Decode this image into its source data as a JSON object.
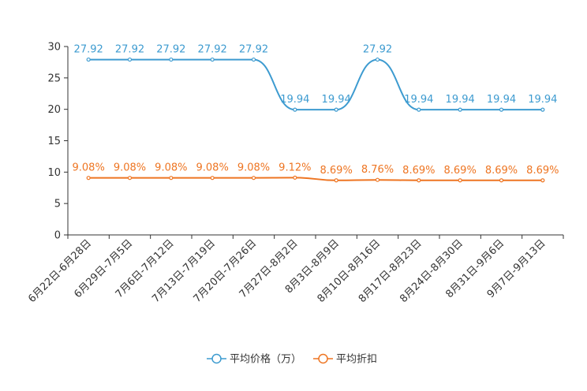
{
  "chart_data": {
    "type": "line",
    "categories": [
      "6月22日-6月28日",
      "6月29日-7月5日",
      "7月6日-7月12日",
      "7月13日-7月19日",
      "7月20日-7月26日",
      "7月27日-8月2日",
      "8月3日-8月9日",
      "8月10日-8月16日",
      "8月17日-8月23日",
      "8月24日-8月30日",
      "8月31日-9月6日",
      "9月7日-9月13日"
    ],
    "ylim": [
      0,
      30
    ],
    "yticks": [
      0,
      5,
      10,
      15,
      20,
      25,
      30
    ],
    "series": [
      {
        "name": "平均价格（万）",
        "color": "#3d9bd0",
        "values": [
          27.92,
          27.92,
          27.92,
          27.92,
          27.92,
          19.94,
          19.94,
          27.92,
          19.94,
          19.94,
          19.94,
          19.94
        ],
        "labels": [
          "27.92",
          "27.92",
          "27.92",
          "27.92",
          "27.92",
          "19.94",
          "19.94",
          "27.92",
          "19.94",
          "19.94",
          "19.94",
          "19.94"
        ]
      },
      {
        "name": "平均折扣",
        "color": "#ee7522",
        "values": [
          9.08,
          9.08,
          9.08,
          9.08,
          9.08,
          9.12,
          8.69,
          8.76,
          8.69,
          8.69,
          8.69,
          8.69
        ],
        "labels": [
          "9.08%",
          "9.08%",
          "9.08%",
          "9.08%",
          "9.08%",
          "9.12%",
          "8.69%",
          "8.76%",
          "8.69%",
          "8.69%",
          "8.69%",
          "8.69%"
        ]
      }
    ],
    "legend_position": "bottom-center"
  }
}
